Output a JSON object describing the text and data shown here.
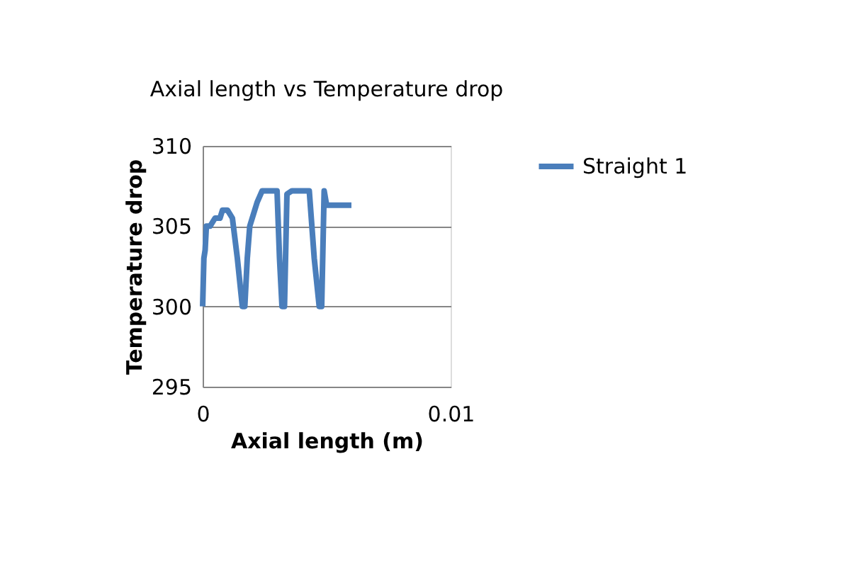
{
  "chart_data": {
    "type": "line",
    "title": "Axial  length vs Temperature drop",
    "xlabel": "Axial length (m)",
    "ylabel": "Temperature drop",
    "series": [
      {
        "name": "Straight 1",
        "color": "#4a7ebb",
        "x": [
          0,
          5e-05,
          0.0001,
          0.00015,
          0.0003,
          0.0005,
          0.0007,
          0.0008,
          0.001,
          0.0012,
          0.0014,
          0.0016,
          0.0017,
          0.0018,
          0.0019,
          0.002,
          0.0022,
          0.0024,
          0.0027,
          0.003,
          0.0031,
          0.0032,
          0.0033,
          0.0034,
          0.0036,
          0.004,
          0.0043,
          0.0045,
          0.0047,
          0.0048,
          0.0049,
          0.005,
          0.0052,
          0.006
        ],
        "values": [
          300,
          303,
          303.5,
          305,
          305,
          305.5,
          305.5,
          306,
          306,
          305.5,
          303,
          300,
          300,
          303,
          305,
          305.5,
          306.5,
          307.2,
          307.2,
          307.2,
          303,
          300,
          300,
          307,
          307.2,
          307.2,
          307.2,
          303,
          300,
          300,
          307.2,
          306.3,
          306.3,
          306.3
        ]
      }
    ],
    "xlim": [
      0,
      0.01
    ],
    "xticks": [
      {
        "value": 0,
        "label": "0"
      },
      {
        "value": 0.01,
        "label": "0.01"
      }
    ],
    "ylim": [
      295,
      310
    ],
    "yticks": [
      295,
      300,
      305,
      310
    ],
    "grid": "y",
    "legend": "right",
    "marker": "none",
    "line_style": "solid"
  }
}
